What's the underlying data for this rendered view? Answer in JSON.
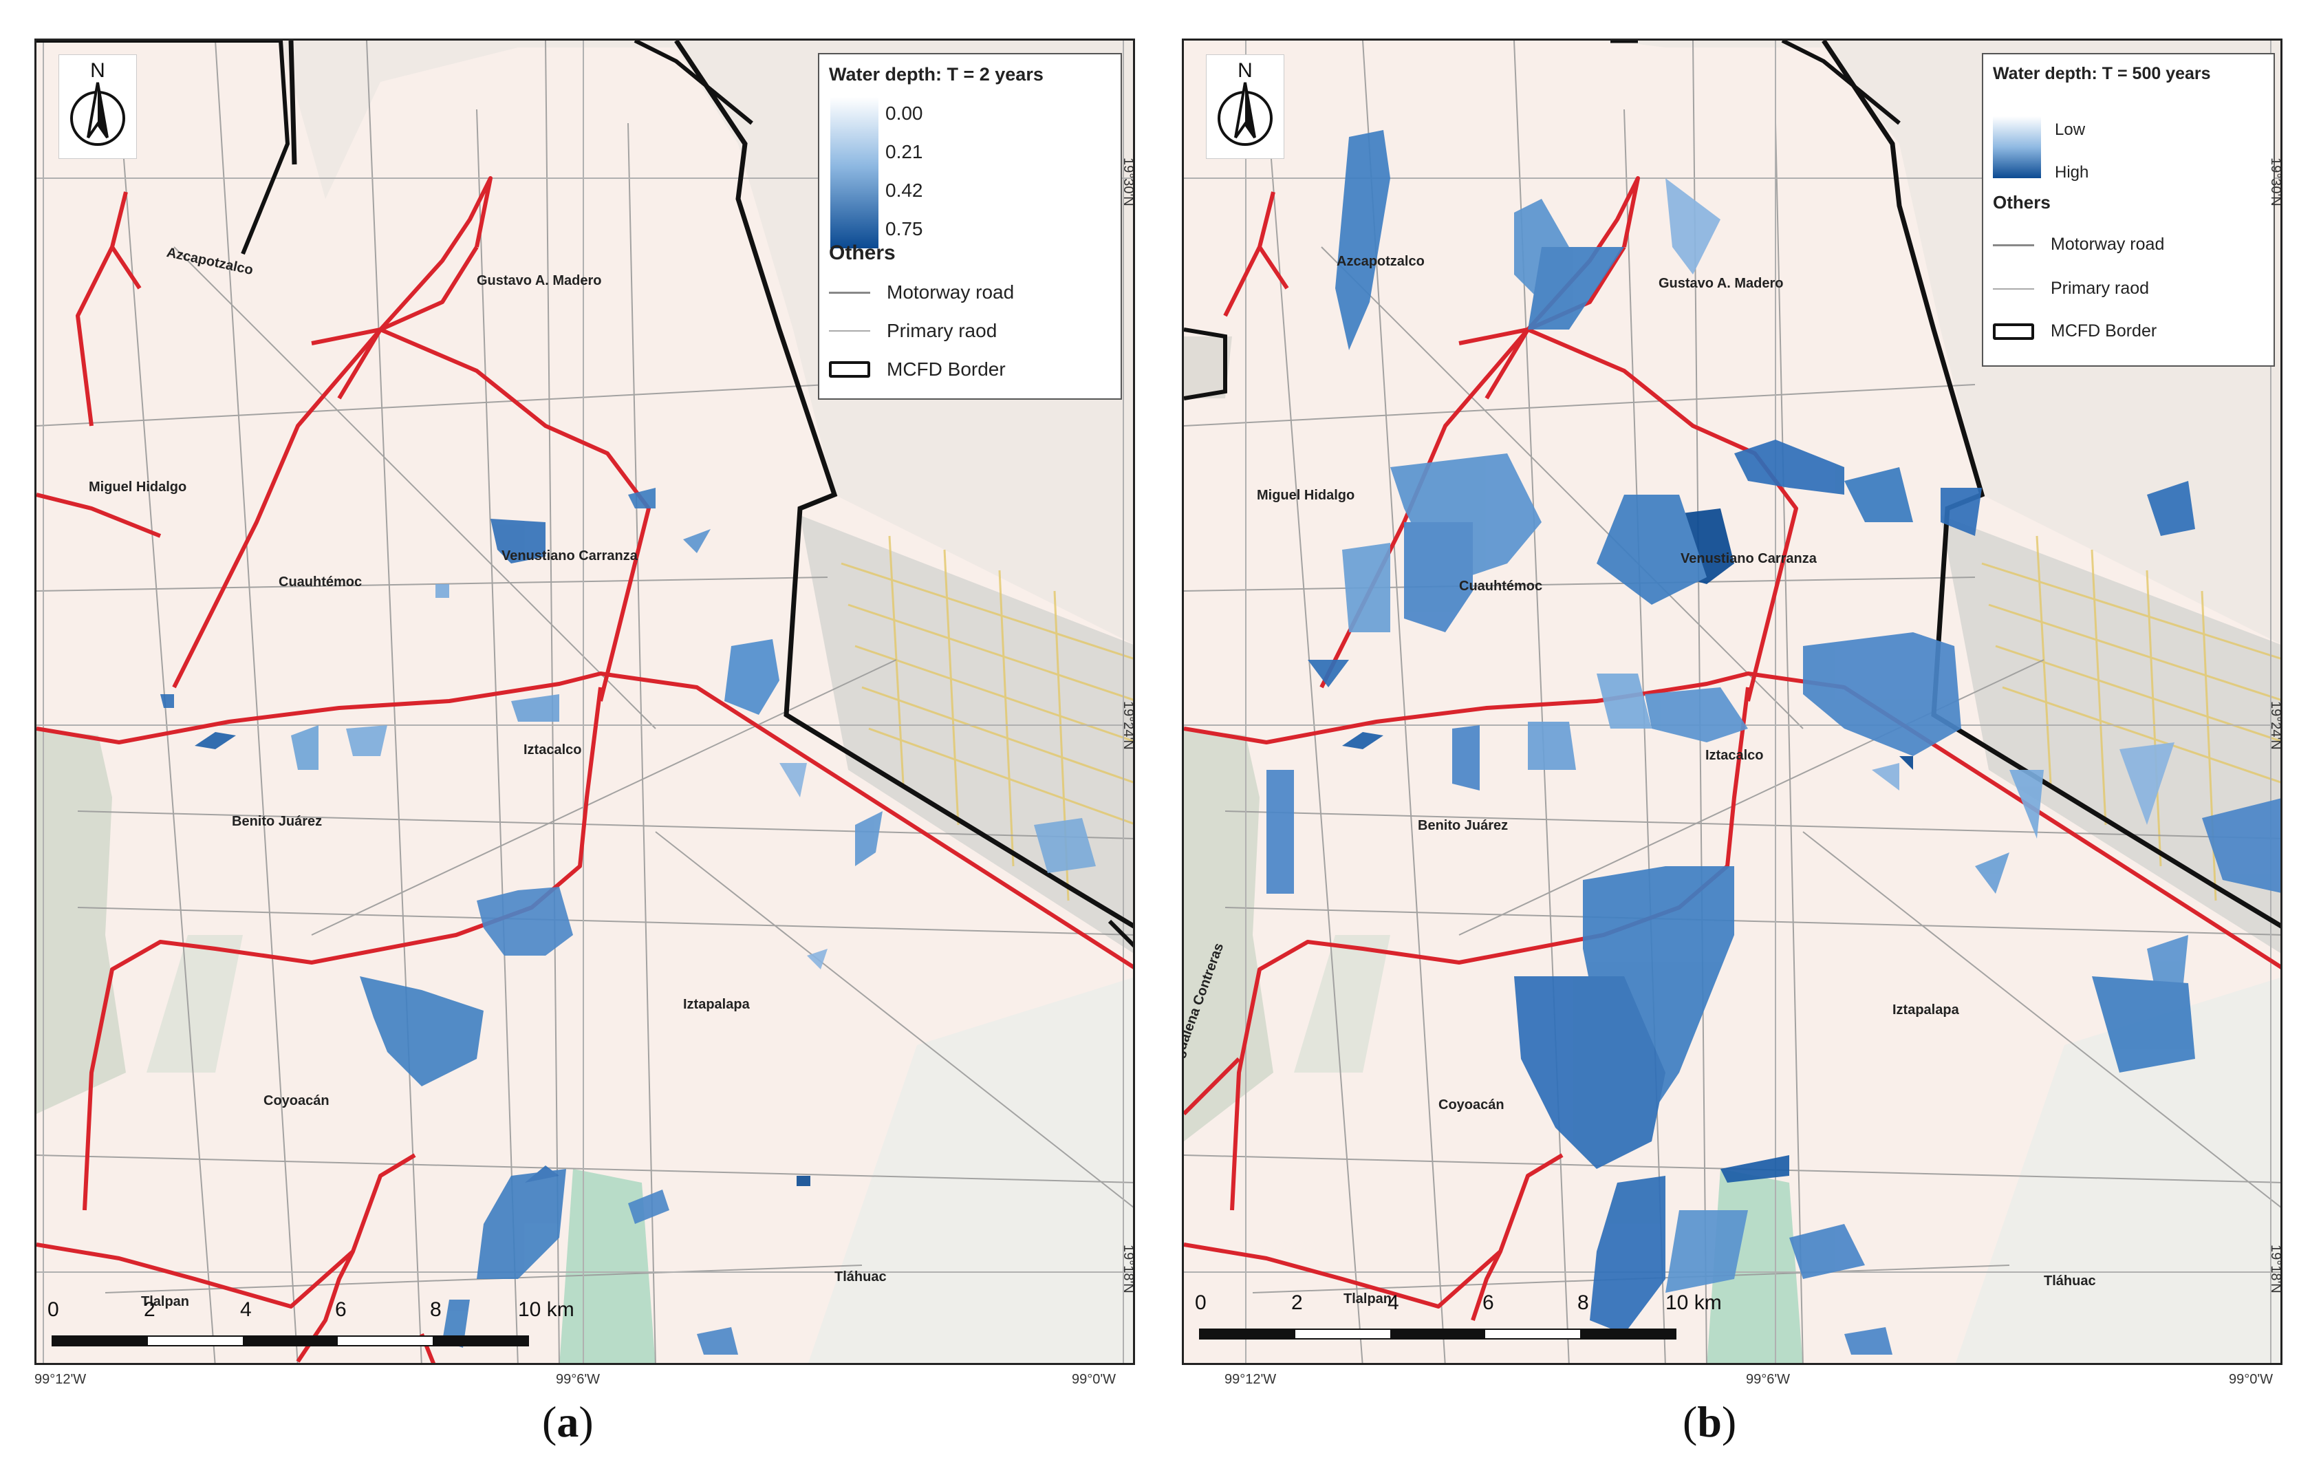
{
  "panels": [
    {
      "id": "a",
      "caption": "a",
      "legend": {
        "title": "Water depth: T = 2 years",
        "scale_values": [
          "0.00",
          "0.21",
          "0.42",
          "0.75"
        ],
        "others_label": "Others",
        "items": [
          "Motorway road",
          "Primary raod",
          "MCFD Border"
        ]
      },
      "districts": [
        "Azcapotzalco",
        "Gustavo A. Madero",
        "Miguel Hidalgo",
        "Cuauhtémoc",
        "Venustiano Carranza",
        "Iztacalco",
        "Benito Juárez",
        "Iztapalapa",
        "Coyoacán",
        "Tlalpan",
        "Tláhuac"
      ],
      "scale": [
        "0",
        "2",
        "4",
        "6",
        "8",
        "10 km"
      ],
      "lon_ticks": [
        "99°12'W",
        "99°6'W",
        "99°0'W"
      ],
      "lat_ticks": [
        "19°30'N",
        "19°24'N",
        "19°18'N"
      ]
    },
    {
      "id": "b",
      "caption": "b",
      "legend": {
        "title": "Water depth: T = 500 years",
        "scale_labels": [
          "Low",
          "High"
        ],
        "others_label": "Others",
        "items": [
          "Motorway road",
          "Primary raod",
          "MCFD Border"
        ]
      },
      "districts": [
        "Azcapotzalco",
        "Gustavo A. Madero",
        "Miguel Hidalgo",
        "Cuauhtémoc",
        "Venustiano Carranza",
        "Iztacalco",
        "Benito Juárez",
        "Iztapalapa",
        "Coyoacán",
        "Tlalpan",
        "Tláhuac",
        "Magdalena Contreras"
      ],
      "scale": [
        "0",
        "2",
        "4",
        "6",
        "8",
        "10 km"
      ],
      "lon_ticks": [
        "99°12'W",
        "99°6'W",
        "99°0'W"
      ],
      "lat_ticks": [
        "19°30'N",
        "19°24'N",
        "19°18'N"
      ]
    }
  ],
  "north_label": "N",
  "colors": {
    "map_bg": "#f9efea",
    "motorway": "#d9242c",
    "flood_light": "#a7c8e8",
    "flood_mid": "#3f84c6",
    "flood_dark": "#0b4a92",
    "border": "#111111",
    "urban_grid": "#e8d37a"
  }
}
